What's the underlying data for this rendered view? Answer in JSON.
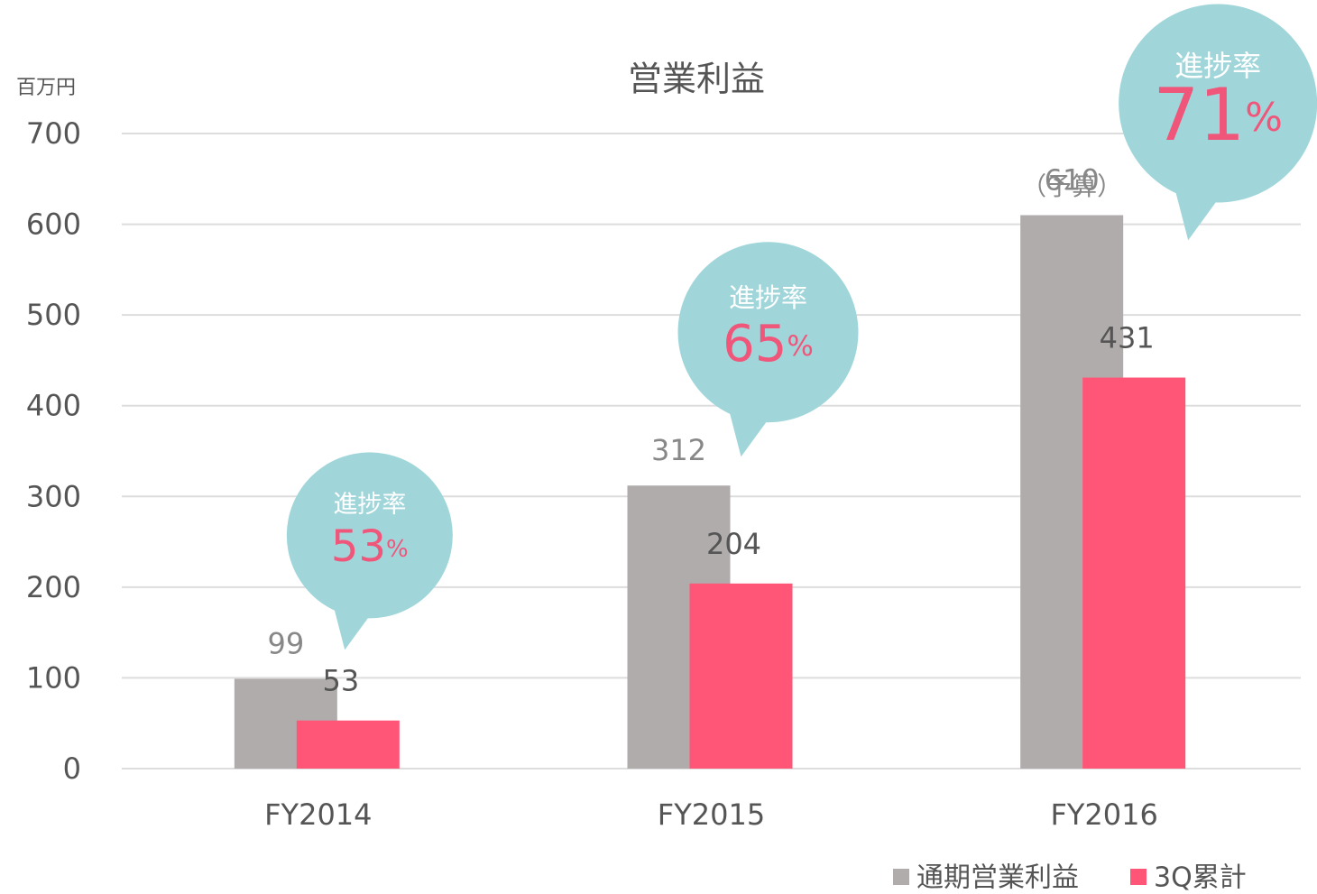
{
  "chart_data": {
    "type": "bar",
    "title": "営業利益",
    "y_unit_label": "百万円",
    "categories": [
      "FY2014",
      "FY2015",
      "FY2016"
    ],
    "series": [
      {
        "name": "通期営業利益",
        "color": "#b0acab",
        "values": [
          99,
          312,
          610
        ]
      },
      {
        "name": "3Q累計",
        "color": "#ff5577",
        "values": [
          53,
          204,
          431
        ]
      }
    ],
    "budget_note": "（予算）",
    "progress": [
      {
        "label": "進捗率",
        "value": 53,
        "unit": "%"
      },
      {
        "label": "進捗率",
        "value": 65,
        "unit": "%"
      },
      {
        "label": "進捗率",
        "value": 71,
        "unit": "%"
      }
    ],
    "bubble_color": "#a0d6da",
    "ylim": [
      0,
      700
    ],
    "yticks": [
      0,
      100,
      200,
      300,
      400,
      500,
      600,
      700
    ],
    "grid": true
  }
}
